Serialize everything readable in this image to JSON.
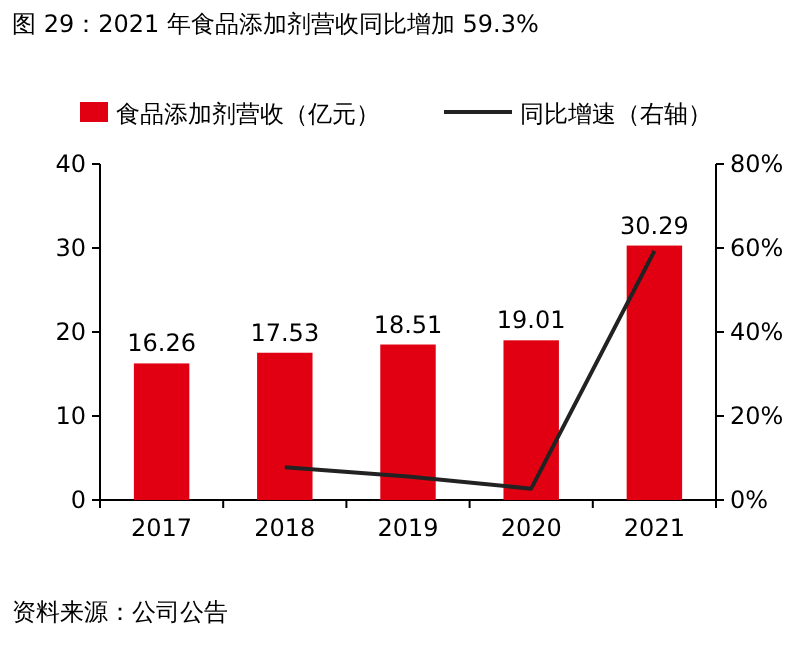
{
  "chart_data": {
    "type": "bar",
    "title": "图 29：2021 年食品添加剂营收同比增加 59.3%",
    "categories": [
      "2017",
      "2018",
      "2019",
      "2020",
      "2021"
    ],
    "series": [
      {
        "name": "食品添加剂营收（亿元）",
        "color": "#e00012",
        "values": [
          16.26,
          17.53,
          18.51,
          19.01,
          30.29
        ],
        "value_labels": [
          "16.26",
          "17.53",
          "18.51",
          "19.01",
          "30.29"
        ]
      },
      {
        "name": "同比增速（右轴）",
        "type": "line",
        "axis": "y2",
        "color": "#222222",
        "values": [
          null,
          7.8,
          5.6,
          2.7,
          59.3
        ]
      }
    ],
    "ylim": [
      0,
      40
    ],
    "yticks": [
      0,
      10,
      20,
      30,
      40
    ],
    "y2lim": [
      0,
      80
    ],
    "y2ticks": [
      {
        "value": 0,
        "label": "0%"
      },
      {
        "value": 20,
        "label": "20%"
      },
      {
        "value": 40,
        "label": "40%"
      },
      {
        "value": 60,
        "label": "60%"
      },
      {
        "value": 80,
        "label": "80%"
      }
    ],
    "legend": "top",
    "annotations": [
      "资料来源：公司公告"
    ]
  }
}
